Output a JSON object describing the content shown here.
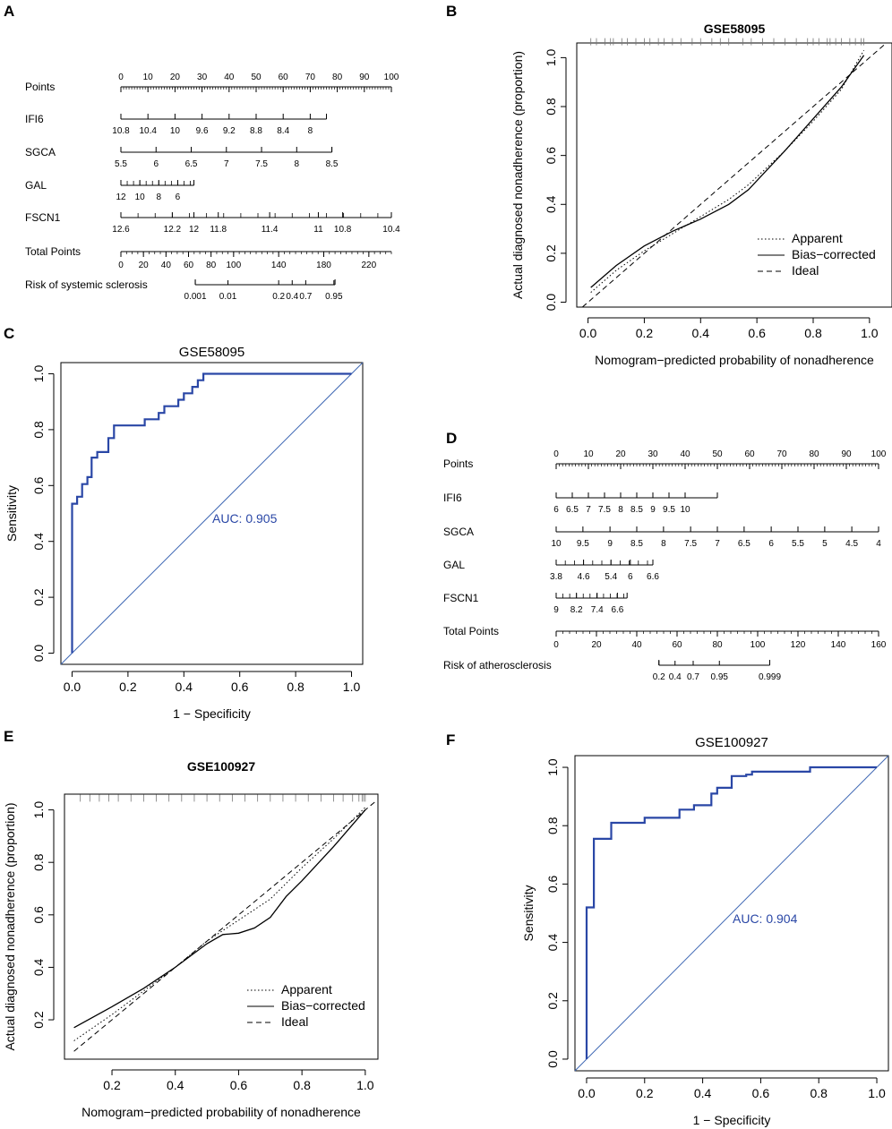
{
  "figure": {
    "panel_labels": [
      "A",
      "B",
      "C",
      "D",
      "E",
      "F"
    ]
  },
  "colors": {
    "roc_curve": "#2a47a6",
    "diagonal": "#3f68b4",
    "auc_text": "#2a47a6",
    "ink": "#000000"
  },
  "chart_data": [
    {
      "panel": "A",
      "type": "nomogram",
      "title": "",
      "rows": [
        {
          "label": "Points",
          "scale": [
            0,
            100
          ],
          "labels": [
            "0",
            "10",
            "20",
            "30",
            "40",
            "50",
            "60",
            "70",
            "80",
            "90",
            "100"
          ],
          "values": [
            0,
            10,
            20,
            30,
            40,
            50,
            60,
            70,
            80,
            90,
            100
          ]
        },
        {
          "label": "IFI6",
          "labels": [
            "10.8",
            "10.4",
            "10",
            "9.6",
            "9.2",
            "8.8",
            "8.4",
            "8"
          ],
          "points": [
            0,
            10,
            20,
            30,
            40,
            50,
            60,
            70
          ],
          "end_points": 76
        },
        {
          "label": "SGCA",
          "labels": [
            "5.5",
            "6",
            "6.5",
            "7",
            "7.5",
            "8",
            "8.5"
          ],
          "points": [
            0,
            13,
            26,
            39,
            52,
            65,
            78
          ]
        },
        {
          "label": "GAL",
          "labels": [
            "12",
            "10",
            "8",
            "6"
          ],
          "points": [
            0,
            7,
            14,
            21
          ],
          "end_points": 27
        },
        {
          "label": "FSCN1",
          "labels": [
            "12.6",
            "12.2",
            "12",
            "11.8",
            "11.4",
            "11",
            "10.8",
            "10.4"
          ],
          "points": [
            0,
            19,
            27,
            36,
            55,
            73,
            82,
            100
          ]
        },
        {
          "label": "Total Points",
          "scale": [
            0,
            240
          ],
          "labels": [
            "0",
            "20",
            "40",
            "60",
            "80",
            "100",
            "140",
            "180",
            "220"
          ],
          "values": [
            0,
            20,
            40,
            60,
            80,
            100,
            140,
            180,
            220
          ]
        },
        {
          "label": "Risk of systemic sclerosis",
          "labels": [
            "0.001",
            "0.01",
            "0.2",
            "0.4",
            "0.7",
            "0.95"
          ],
          "total_points": [
            66,
            95,
            140,
            152,
            164,
            189
          ],
          "range": [
            66,
            190
          ]
        }
      ]
    },
    {
      "panel": "B",
      "type": "calibration",
      "title": "GSE58095",
      "xlabel": "Nomogram−predicted probability of nonadherence",
      "ylabel": "Actual diagnosed nonadherence (proportion)",
      "xlim": [
        -0.04,
        1.08
      ],
      "ylim": [
        -0.02,
        1.06
      ],
      "xticks": [
        0.0,
        0.2,
        0.4,
        0.6,
        0.8,
        1.0
      ],
      "xtick_labels": [
        "0.0",
        "0.2",
        "0.4",
        "0.6",
        "0.8",
        "1.0"
      ],
      "yticks": [
        0.0,
        0.2,
        0.4,
        0.6,
        0.8,
        1.0
      ],
      "ytick_labels": [
        "0.0",
        "0.2",
        "0.4",
        "0.6",
        "0.8",
        "1.0"
      ],
      "legend": [
        "Apparent",
        "Bias−corrected",
        "Ideal"
      ],
      "series": [
        {
          "name": "Apparent",
          "style": "dotted",
          "x": [
            0.01,
            0.1,
            0.2,
            0.3,
            0.4,
            0.5,
            0.57,
            0.7,
            0.8,
            0.9,
            0.98
          ],
          "y": [
            0.04,
            0.13,
            0.21,
            0.28,
            0.35,
            0.42,
            0.48,
            0.62,
            0.74,
            0.87,
            1.03
          ]
        },
        {
          "name": "Bias−corrected",
          "style": "solid",
          "x": [
            0.01,
            0.1,
            0.2,
            0.3,
            0.4,
            0.5,
            0.57,
            0.7,
            0.8,
            0.9,
            0.98
          ],
          "y": [
            0.06,
            0.15,
            0.23,
            0.29,
            0.34,
            0.4,
            0.46,
            0.62,
            0.75,
            0.88,
            1.01
          ]
        },
        {
          "name": "Ideal",
          "style": "dashed",
          "x": [
            -0.02,
            1.06
          ],
          "y": [
            -0.02,
            1.06
          ]
        }
      ],
      "rug": {
        "y": 1.065,
        "x": [
          0.01,
          0.03,
          0.06,
          0.08,
          0.09,
          0.12,
          0.14,
          0.17,
          0.2,
          0.22,
          0.25,
          0.27,
          0.3,
          0.33,
          0.37,
          0.4,
          0.44,
          0.47,
          0.5,
          0.55,
          0.58,
          0.62,
          0.66,
          0.7,
          0.74,
          0.78,
          0.8,
          0.82,
          0.85,
          0.86,
          0.88,
          0.9,
          0.93,
          0.95,
          0.97,
          0.98
        ]
      }
    },
    {
      "panel": "C",
      "type": "roc",
      "title": "GSE58095",
      "xlabel": "1 − Specificity",
      "ylabel": "Sensitivity",
      "xlim": [
        -0.04,
        1.04
      ],
      "ylim": [
        -0.04,
        1.04
      ],
      "xticks": [
        0.0,
        0.2,
        0.4,
        0.6,
        0.8,
        1.0
      ],
      "xtick_labels": [
        "0.0",
        "0.2",
        "0.4",
        "0.6",
        "0.8",
        "1.0"
      ],
      "yticks": [
        0.0,
        0.2,
        0.4,
        0.6,
        0.8,
        1.0
      ],
      "ytick_labels": [
        "0.0",
        "0.2",
        "0.4",
        "0.6",
        "0.8",
        "1.0"
      ],
      "auc_text": "AUC: 0.905",
      "x": [
        0,
        0,
        0.018,
        0.018,
        0.036,
        0.036,
        0.055,
        0.055,
        0.07,
        0.07,
        0.09,
        0.09,
        0.13,
        0.13,
        0.15,
        0.15,
        0.26,
        0.26,
        0.31,
        0.31,
        0.33,
        0.33,
        0.38,
        0.38,
        0.4,
        0.4,
        0.43,
        0.43,
        0.45,
        0.45,
        0.47,
        0.47,
        1.0
      ],
      "y": [
        0,
        0.535,
        0.535,
        0.56,
        0.56,
        0.605,
        0.605,
        0.63,
        0.63,
        0.7,
        0.7,
        0.72,
        0.72,
        0.77,
        0.77,
        0.815,
        0.815,
        0.837,
        0.837,
        0.86,
        0.86,
        0.884,
        0.884,
        0.907,
        0.907,
        0.93,
        0.93,
        0.953,
        0.953,
        0.977,
        0.977,
        1.0,
        1.0
      ]
    },
    {
      "panel": "D",
      "type": "nomogram",
      "title": "",
      "rows": [
        {
          "label": "Points",
          "scale": [
            0,
            100
          ],
          "labels": [
            "0",
            "10",
            "20",
            "30",
            "40",
            "50",
            "60",
            "70",
            "80",
            "90",
            "100"
          ],
          "values": [
            0,
            10,
            20,
            30,
            40,
            50,
            60,
            70,
            80,
            90,
            100
          ]
        },
        {
          "label": "IFI6",
          "labels": [
            "6",
            "6.5",
            "7",
            "7.5",
            "8",
            "8.5",
            "9",
            "9.5",
            "10"
          ],
          "points": [
            0,
            5,
            10,
            15,
            20,
            25,
            30,
            35,
            40
          ],
          "end_points": 50
        },
        {
          "label": "SGCA",
          "labels": [
            "10",
            "9.5",
            "9",
            "8.5",
            "8",
            "7.5",
            "7",
            "6.5",
            "6",
            "5.5",
            "5",
            "4.5",
            "4"
          ],
          "points": [
            0,
            8.3,
            16.7,
            25,
            33.3,
            41.7,
            50,
            58.3,
            66.7,
            75,
            83.3,
            91.7,
            100
          ]
        },
        {
          "label": "GAL",
          "labels": [
            "3.8",
            "4.6",
            "5.4",
            "6",
            "6.6"
          ],
          "points": [
            0,
            8.5,
            17,
            23,
            30
          ],
          "end_points": 30
        },
        {
          "label": "FSCN1",
          "labels": [
            "9",
            "8.2",
            "7.4",
            "6.6"
          ],
          "points": [
            0,
            6.3,
            12.7,
            19
          ],
          "end_points": 22
        },
        {
          "label": "Total Points",
          "scale": [
            0,
            160
          ],
          "labels": [
            "0",
            "20",
            "40",
            "60",
            "80",
            "100",
            "120",
            "140",
            "160"
          ],
          "values": [
            0,
            20,
            40,
            60,
            80,
            100,
            120,
            140,
            160
          ]
        },
        {
          "label": "Risk of atherosclerosis",
          "labels": [
            "0.2",
            "0.4",
            "0.7",
            "0.95",
            "0.999"
          ],
          "total_points": [
            51,
            59,
            68,
            81,
            106
          ],
          "range": [
            51,
            106
          ]
        }
      ]
    },
    {
      "panel": "E",
      "type": "calibration",
      "title": "GSE100927",
      "xlabel": "Nomogram−predicted probability of nonadherence",
      "ylabel": "Actual diagnosed nonadherence (proportion)",
      "xlim": [
        0.05,
        1.04
      ],
      "ylim": [
        0.05,
        1.06
      ],
      "xticks": [
        0.2,
        0.4,
        0.6,
        0.8,
        1.0
      ],
      "xtick_labels": [
        "0.2",
        "0.4",
        "0.6",
        "0.8",
        "1.0"
      ],
      "yticks": [
        0.2,
        0.4,
        0.6,
        0.8,
        1.0
      ],
      "ytick_labels": [
        "0.2",
        "0.4",
        "0.6",
        "0.8",
        "1.0"
      ],
      "legend": [
        "Apparent",
        "Bias−corrected",
        "Ideal"
      ],
      "series": [
        {
          "name": "Apparent",
          "style": "dotted",
          "x": [
            0.08,
            0.2,
            0.3,
            0.4,
            0.5,
            0.6,
            0.7,
            0.8,
            0.9,
            1.0
          ],
          "y": [
            0.12,
            0.22,
            0.31,
            0.4,
            0.5,
            0.58,
            0.66,
            0.78,
            0.89,
            1.01
          ]
        },
        {
          "name": "Bias−corrected",
          "style": "solid",
          "x": [
            0.08,
            0.2,
            0.3,
            0.4,
            0.5,
            0.55,
            0.6,
            0.65,
            0.7,
            0.75,
            0.8,
            0.9,
            1.0
          ],
          "y": [
            0.17,
            0.25,
            0.32,
            0.4,
            0.49,
            0.525,
            0.53,
            0.55,
            0.59,
            0.67,
            0.73,
            0.86,
            1.0
          ]
        },
        {
          "name": "Ideal",
          "style": "dashed",
          "x": [
            0.08,
            1.03
          ],
          "y": [
            0.08,
            1.03
          ]
        }
      ],
      "rug": {
        "y": 1.045,
        "x": [
          0.1,
          0.13,
          0.16,
          0.19,
          0.22,
          0.26,
          0.3,
          0.34,
          0.38,
          0.42,
          0.46,
          0.5,
          0.54,
          0.58,
          0.62,
          0.66,
          0.7,
          0.74,
          0.78,
          0.82,
          0.86,
          0.9,
          0.93,
          0.96,
          0.98,
          0.99,
          0.995,
          1.0
        ]
      }
    },
    {
      "panel": "F",
      "type": "roc",
      "title": "GSE100927",
      "xlabel": "1 − Specificity",
      "ylabel": "Sensitivity",
      "xlim": [
        -0.04,
        1.04
      ],
      "ylim": [
        -0.04,
        1.04
      ],
      "xticks": [
        0.0,
        0.2,
        0.4,
        0.6,
        0.8,
        1.0
      ],
      "xtick_labels": [
        "0.0",
        "0.2",
        "0.4",
        "0.6",
        "0.8",
        "1.0"
      ],
      "yticks": [
        0.0,
        0.2,
        0.4,
        0.6,
        0.8,
        1.0
      ],
      "ytick_labels": [
        "0.0",
        "0.2",
        "0.4",
        "0.6",
        "0.8",
        "1.0"
      ],
      "auc_text": "AUC: 0.904",
      "x": [
        0,
        0,
        0.025,
        0.025,
        0.085,
        0.085,
        0.2,
        0.2,
        0.32,
        0.32,
        0.37,
        0.37,
        0.43,
        0.43,
        0.45,
        0.45,
        0.5,
        0.5,
        0.55,
        0.55,
        0.57,
        0.57,
        0.77,
        0.77,
        1.0
      ],
      "y": [
        0,
        0.52,
        0.52,
        0.755,
        0.755,
        0.81,
        0.81,
        0.827,
        0.827,
        0.855,
        0.855,
        0.87,
        0.87,
        0.91,
        0.91,
        0.93,
        0.93,
        0.97,
        0.97,
        0.975,
        0.975,
        0.985,
        0.985,
        1.0,
        1.0
      ]
    }
  ]
}
